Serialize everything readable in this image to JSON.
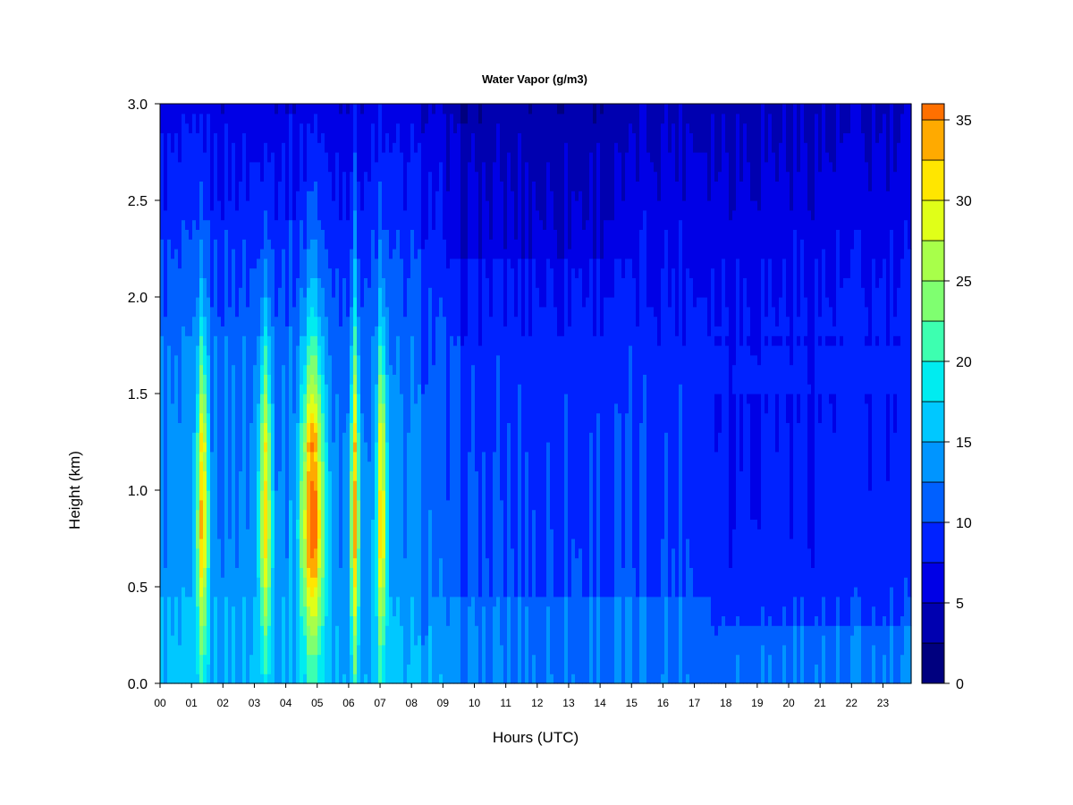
{
  "chart_data": {
    "type": "heatmap",
    "title": "Water Vapor (g/m3)",
    "xlabel": "Hours (UTC)",
    "ylabel": "Height (km)",
    "x_ticks": [
      "00",
      "01",
      "02",
      "03",
      "04",
      "05",
      "06",
      "07",
      "08",
      "09",
      "10",
      "11",
      "12",
      "13",
      "14",
      "15",
      "16",
      "17",
      "18",
      "19",
      "20",
      "21",
      "22",
      "23"
    ],
    "y_ticks": [
      "0.0",
      "0.5",
      "1.0",
      "1.5",
      "2.0",
      "2.5",
      "3.0"
    ],
    "xlim": [
      0,
      23.9
    ],
    "ylim": [
      0.0,
      3.0
    ],
    "colorbar": {
      "range": [
        0,
        36
      ],
      "step": 2.5,
      "tick_labels": [
        "0",
        "5",
        "10",
        "15",
        "20",
        "25",
        "30",
        "35"
      ],
      "tick_values": [
        0,
        5,
        10,
        15,
        20,
        25,
        30,
        35
      ],
      "colors": [
        "#00007f",
        "#0000b0",
        "#0000e6",
        "#0022ff",
        "#0060ff",
        "#0095ff",
        "#00c8ff",
        "#00ecf0",
        "#3dffb0",
        "#7fff70",
        "#a8ff4a",
        "#e0ff18",
        "#ffe600",
        "#ffaa00",
        "#ff7000",
        "#ff3a00",
        "#f00000",
        "#c00000",
        "#800000"
      ]
    },
    "field_description": {
      "convective_plumes_hours": [
        1.35,
        3.35,
        4.85,
        6.2,
        7.05
      ],
      "plume_peak_height_km": 0.85,
      "plume_peak_value": 34
    }
  }
}
